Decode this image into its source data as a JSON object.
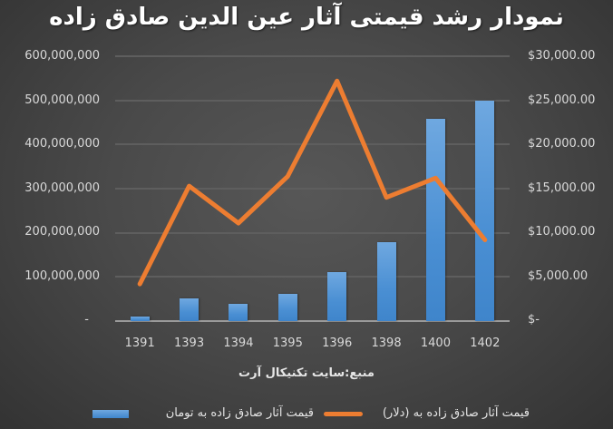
{
  "title": "نمودار رشد قیمتی آثار عین الدین صادق زاده",
  "source_note": "منبع:سایت تکنیکال آرت",
  "axes": {
    "left_ticks": [
      "600,000,000",
      "500,000,000",
      "400,000,000",
      "300,000,000",
      "200,000,000",
      "100,000,000",
      "-"
    ],
    "right_ticks": [
      "$30,000.00",
      "$25,000.00",
      "$20,000.00",
      "$15,000.00",
      "$10,000.00",
      "$5,000.00",
      "$-"
    ]
  },
  "legend": {
    "bar_label": "قیمت آثار صادق زاده به تومان",
    "line_label": "قیمت آثار صادق زاده به (دلار)"
  },
  "colors": {
    "bar": "#4a8fd3",
    "line": "#ed7d31",
    "background": "#474747",
    "text": "#d9d9d9"
  },
  "chart_data": {
    "type": "bar+line",
    "title": "نمودار رشد قیمتی آثار عین الدین صادق زاده",
    "categories": [
      "1391",
      "1393",
      "1394",
      "1395",
      "1396",
      "1398",
      "1400",
      "1402"
    ],
    "series": [
      {
        "name": "قیمت آثار صادق زاده به تومان",
        "type": "bar",
        "axis": "left",
        "values": [
          10000000,
          51000000,
          39000000,
          62000000,
          111000000,
          179000000,
          458000000,
          500000000
        ]
      },
      {
        "name": "قیمت آثار صادق زاده به (دلار)",
        "type": "line",
        "axis": "right",
        "values": [
          4200,
          15300,
          11100,
          16400,
          27200,
          14000,
          16200,
          9200
        ]
      }
    ],
    "left_ylim": [
      0,
      600000000
    ],
    "right_ylim": [
      0,
      30000
    ],
    "left_tick_step": 100000000,
    "right_tick_step": 5000,
    "xlabel": "",
    "ylabel_left": "",
    "ylabel_right": "",
    "grid": true,
    "legend_position": "bottom",
    "annotation": "منبع:سایت تکنیکال آرت"
  }
}
